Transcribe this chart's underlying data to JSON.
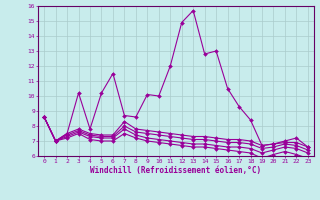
{
  "xlabel": "Windchill (Refroidissement éolien,°C)",
  "xlim": [
    -0.5,
    23.5
  ],
  "ylim": [
    6,
    16
  ],
  "yticks": [
    6,
    7,
    8,
    9,
    10,
    11,
    12,
    13,
    14,
    15,
    16
  ],
  "xticks": [
    0,
    1,
    2,
    3,
    4,
    5,
    6,
    7,
    8,
    9,
    10,
    11,
    12,
    13,
    14,
    15,
    16,
    17,
    18,
    19,
    20,
    21,
    22,
    23
  ],
  "bg_color": "#c8ecec",
  "grid_color": "#aacccc",
  "line_color": "#990099",
  "axis_color": "#660066",
  "lines": [
    {
      "x": [
        0,
        1,
        2,
        3,
        4,
        5,
        6,
        7,
        8,
        9,
        10,
        11,
        12,
        13,
        14,
        15,
        16,
        17,
        18,
        19,
        20,
        21,
        22,
        23
      ],
      "y": [
        8.6,
        7.0,
        7.5,
        10.2,
        7.8,
        10.2,
        11.5,
        8.7,
        8.6,
        10.1,
        10.0,
        12.0,
        14.9,
        15.7,
        12.8,
        13.0,
        10.5,
        9.3,
        8.4,
        6.7,
        6.8,
        7.0,
        7.2,
        6.6
      ]
    },
    {
      "x": [
        0,
        1,
        2,
        3,
        4,
        5,
        6,
        7,
        8,
        9,
        10,
        11,
        12,
        13,
        14,
        15,
        16,
        17,
        18,
        19,
        20,
        21,
        22,
        23
      ],
      "y": [
        8.6,
        7.0,
        7.5,
        7.8,
        7.5,
        7.4,
        7.4,
        8.3,
        7.8,
        7.7,
        7.6,
        7.5,
        7.4,
        7.3,
        7.3,
        7.2,
        7.1,
        7.1,
        7.0,
        6.7,
        6.8,
        6.9,
        6.9,
        6.6
      ]
    },
    {
      "x": [
        0,
        1,
        2,
        3,
        4,
        5,
        6,
        7,
        8,
        9,
        10,
        11,
        12,
        13,
        14,
        15,
        16,
        17,
        18,
        19,
        20,
        21,
        22,
        23
      ],
      "y": [
        8.6,
        7.0,
        7.4,
        7.7,
        7.4,
        7.3,
        7.3,
        8.0,
        7.6,
        7.5,
        7.4,
        7.3,
        7.2,
        7.1,
        7.1,
        7.0,
        6.9,
        6.9,
        6.8,
        6.5,
        6.6,
        6.8,
        6.7,
        6.4
      ]
    },
    {
      "x": [
        0,
        1,
        2,
        3,
        4,
        5,
        6,
        7,
        8,
        9,
        10,
        11,
        12,
        13,
        14,
        15,
        16,
        17,
        18,
        19,
        20,
        21,
        22,
        23
      ],
      "y": [
        8.6,
        7.0,
        7.3,
        7.6,
        7.3,
        7.2,
        7.2,
        7.8,
        7.4,
        7.2,
        7.1,
        7.0,
        6.9,
        6.8,
        6.8,
        6.7,
        6.6,
        6.6,
        6.5,
        6.2,
        6.4,
        6.6,
        6.5,
        6.2
      ]
    },
    {
      "x": [
        0,
        1,
        2,
        3,
        4,
        5,
        6,
        7,
        8,
        9,
        10,
        11,
        12,
        13,
        14,
        15,
        16,
        17,
        18,
        19,
        20,
        21,
        22,
        23
      ],
      "y": [
        8.6,
        7.0,
        7.2,
        7.5,
        7.1,
        7.0,
        7.0,
        7.5,
        7.2,
        7.0,
        6.9,
        6.8,
        6.7,
        6.6,
        6.6,
        6.5,
        6.4,
        6.3,
        6.2,
        5.85,
        6.1,
        6.3,
        6.1,
        5.85
      ]
    }
  ]
}
